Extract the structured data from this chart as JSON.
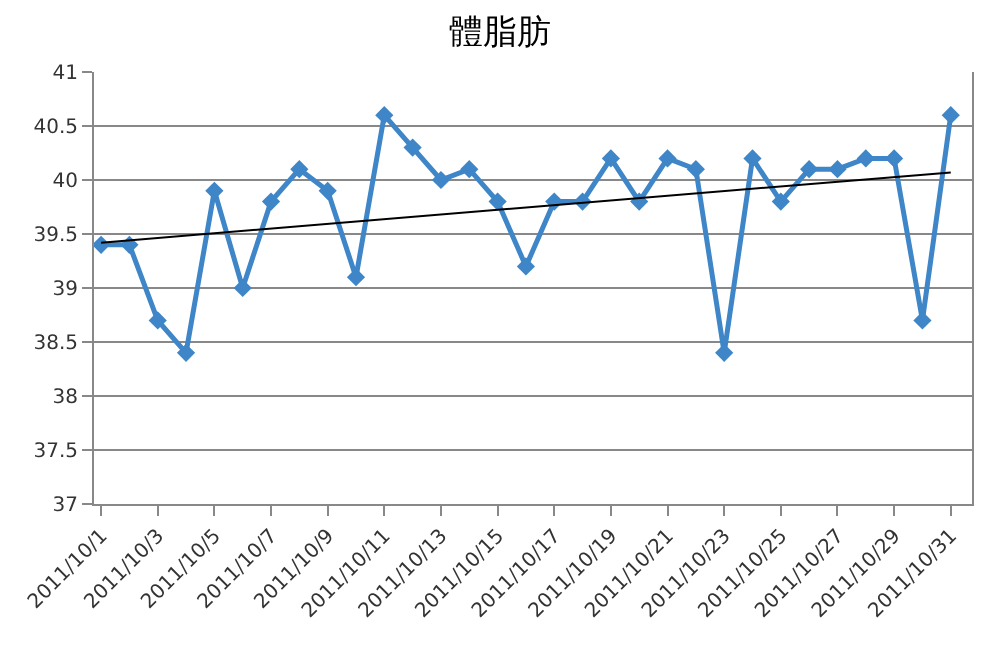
{
  "chart_data": {
    "type": "line",
    "title": "體脂肪",
    "x": [
      "2011-10-01",
      "2011-10-02",
      "2011-10-03",
      "2011-10-04",
      "2011-10-05",
      "2011-10-06",
      "2011-10-07",
      "2011-10-08",
      "2011-10-09",
      "2011-10-10",
      "2011-10-11",
      "2011-10-12",
      "2011-10-13",
      "2011-10-14",
      "2011-10-15",
      "2011-10-16",
      "2011-10-17",
      "2011-10-18",
      "2011-10-19",
      "2011-10-20",
      "2011-10-21",
      "2011-10-22",
      "2011-10-23",
      "2011-10-24",
      "2011-10-25",
      "2011-10-26",
      "2011-10-27",
      "2011-10-28",
      "2011-10-29",
      "2011-10-30",
      "2011-10-31"
    ],
    "series": [
      {
        "color": "#3e86c8",
        "marker": "diamond",
        "values": [
          39.4,
          39.4,
          38.7,
          38.4,
          39.9,
          39.0,
          39.8,
          40.1,
          39.9,
          39.1,
          40.6,
          40.3,
          40.0,
          40.1,
          39.8,
          39.2,
          39.8,
          39.8,
          40.2,
          39.8,
          40.2,
          40.1,
          38.4,
          40.2,
          39.8,
          40.1,
          40.1,
          40.2,
          40.2,
          38.7,
          40.6
        ]
      },
      {
        "type": "line",
        "color": "#000000",
        "marker": "none",
        "x": [
          "2011-10-01",
          "2011-10-31"
        ],
        "values": [
          39.42,
          40.07
        ]
      }
    ],
    "xlim": [
      "2011-09-30T18:00",
      "2011-10-31T18:00"
    ],
    "xticks": [
      {
        "value": "2011-10-01",
        "label": "2011/10/1"
      },
      {
        "value": "2011-10-03",
        "label": "2011/10/3"
      },
      {
        "value": "2011-10-05",
        "label": "2011/10/5"
      },
      {
        "value": "2011-10-07",
        "label": "2011/10/7"
      },
      {
        "value": "2011-10-09",
        "label": "2011/10/9"
      },
      {
        "value": "2011-10-11",
        "label": "2011/10/11"
      },
      {
        "value": "2011-10-13",
        "label": "2011/10/13"
      },
      {
        "value": "2011-10-15",
        "label": "2011/10/15"
      },
      {
        "value": "2011-10-17",
        "label": "2011/10/17"
      },
      {
        "value": "2011-10-19",
        "label": "2011/10/19"
      },
      {
        "value": "2011-10-21",
        "label": "2011/10/21"
      },
      {
        "value": "2011-10-23",
        "label": "2011/10/23"
      },
      {
        "value": "2011-10-25",
        "label": "2011/10/25"
      },
      {
        "value": "2011-10-27",
        "label": "2011/10/27"
      },
      {
        "value": "2011-10-29",
        "label": "2011/10/29"
      },
      {
        "value": "2011-10-31",
        "label": "2011/10/31"
      }
    ],
    "ylim": [
      37,
      41
    ],
    "yticks": [
      37,
      37.5,
      38,
      38.5,
      39,
      39.5,
      40,
      40.5,
      41
    ],
    "grid": "y"
  }
}
